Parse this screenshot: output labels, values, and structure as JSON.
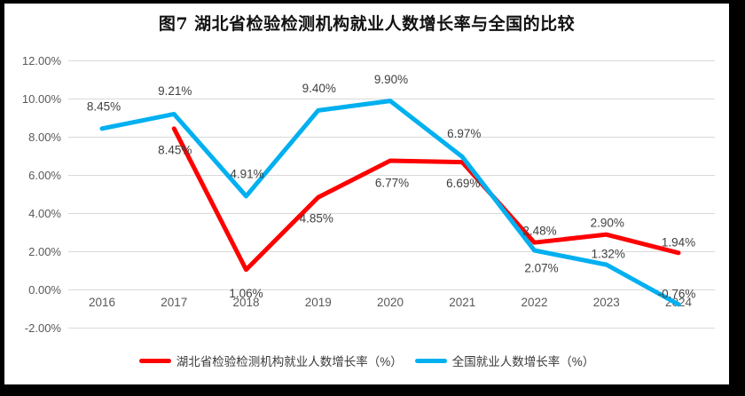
{
  "title": "图7 湖北省检验检测机构就业人数增长率与全国的比较",
  "chart_data": {
    "type": "line",
    "title": "图7 湖北省检验检测机构就业人数增长率与全国的比较",
    "categories": [
      "2016",
      "2017",
      "2018",
      "2019",
      "2020",
      "2021",
      "2022",
      "2023",
      "2024"
    ],
    "series": [
      {
        "name": "湖北省检验检测机构就业人数增长率（%）",
        "color": "#FF0000",
        "values": [
          null,
          8.45,
          1.06,
          4.85,
          6.77,
          6.69,
          2.48,
          2.9,
          1.94
        ],
        "labels": [
          "",
          "8.45%",
          "1.06%",
          "4.85%",
          "6.77%",
          "6.69%",
          "2.48%",
          "2.90%",
          "1.94%"
        ],
        "label_offsets": [
          [
            0,
            0
          ],
          [
            1,
            24
          ],
          [
            0,
            27
          ],
          [
            -2,
            24
          ],
          [
            2,
            25
          ],
          [
            1,
            24
          ],
          [
            6,
            -13
          ],
          [
            1,
            -13
          ],
          [
            0,
            -12
          ]
        ]
      },
      {
        "name": "全国就业人数增长率（%）",
        "color": "#00B0F0",
        "values": [
          8.45,
          9.21,
          4.91,
          9.4,
          9.9,
          6.97,
          2.07,
          1.32,
          -0.76
        ],
        "labels": [
          "8.45%",
          "9.21%",
          "4.91%",
          "9.40%",
          "9.90%",
          "6.97%",
          "2.07%",
          "1.32%",
          "-0.76%"
        ],
        "label_offsets": [
          [
            2,
            -25
          ],
          [
            1,
            -26
          ],
          [
            1,
            -25
          ],
          [
            1,
            -25
          ],
          [
            1,
            -24
          ],
          [
            2,
            -26
          ],
          [
            8,
            20
          ],
          [
            2,
            -12
          ],
          [
            -2,
            -12
          ]
        ]
      }
    ],
    "y_axis": {
      "min": -2,
      "max": 12,
      "step": 2,
      "tick_labels": [
        "12.00%",
        "10.00%",
        "8.00%",
        "6.00%",
        "4.00%",
        "2.00%",
        "0.00%",
        "-2.00%"
      ]
    },
    "grid": true,
    "gridline_color": "#D9D9D9",
    "axis_label_color": "#595959",
    "data_label_color": "#3F3F3F",
    "legend_position": "bottom",
    "frame_color": "#000000"
  }
}
